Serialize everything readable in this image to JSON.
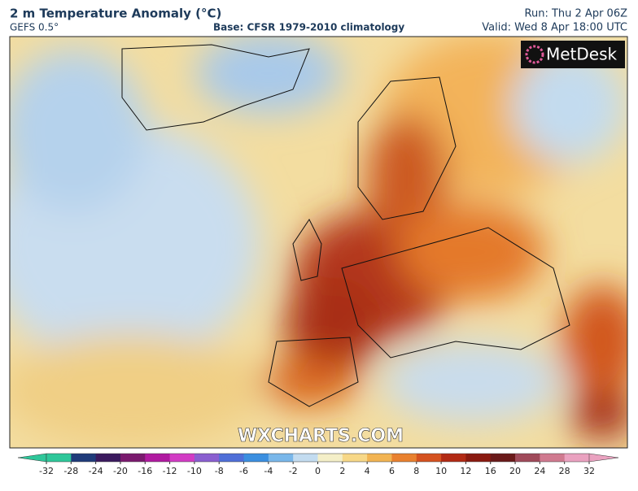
{
  "header": {
    "title": "2 m Temperature Anomaly (°C)",
    "model": "GEFS 0.5°",
    "base": "Base: CFSR 1979-2010 climatology",
    "run": "Run: Thu 2 Apr 06Z",
    "valid": "Valid: Wed 8 Apr 18:00 UTC"
  },
  "logo": "MetDesk",
  "watermark": "WXCHARTS.COM",
  "colorbar": {
    "ticks": [
      -32,
      -28,
      -24,
      -20,
      -16,
      -12,
      -10,
      -8,
      -6,
      -4,
      -2,
      0,
      2,
      4,
      6,
      8,
      10,
      12,
      16,
      20,
      24,
      28,
      32
    ],
    "colors": [
      "#2ec79a",
      "#1f3b7a",
      "#3b1a5e",
      "#7a1a6e",
      "#b01aa0",
      "#d23cc4",
      "#8a5fd0",
      "#4f6fd8",
      "#3b8fe0",
      "#79b7ea",
      "#c3dcf0",
      "#f4efc8",
      "#f7d888",
      "#f2b453",
      "#e9812f",
      "#d55220",
      "#b22a14",
      "#8a1a10",
      "#6a1a1a",
      "#a04a5a",
      "#d07a90",
      "#eaa2c0"
    ]
  }
}
